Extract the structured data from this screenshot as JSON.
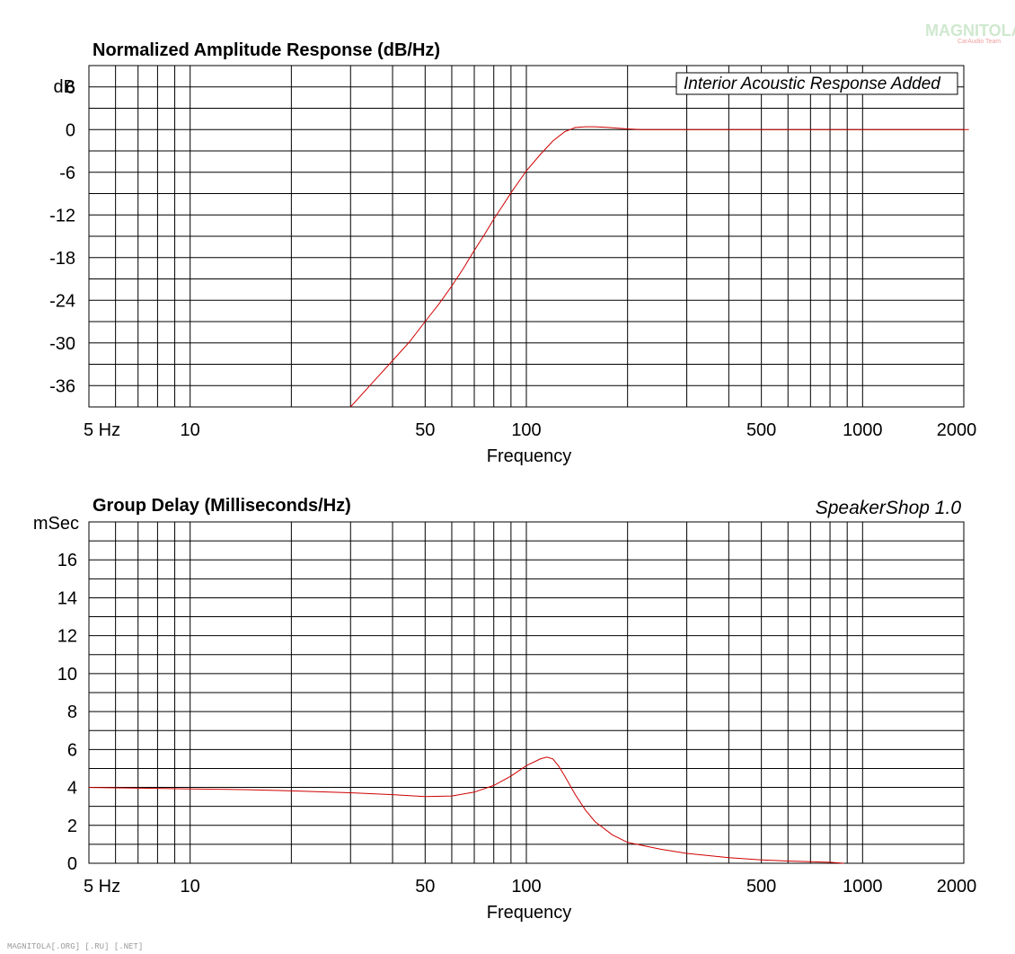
{
  "watermark": {
    "logo": "MAGNITOLA",
    "logo_sub": "CarAudio Team",
    "footer": "MAGNITOLA[.ORG] [.RU] [.NET]"
  },
  "colors": {
    "curve": "#d00000",
    "grid": "#000000"
  },
  "chart_data": [
    {
      "type": "line",
      "title": "Normalized Amplitude Response (dB/Hz)",
      "xlabel": "Frequency",
      "ylabel": "dB",
      "x_scale": "log",
      "xlim": [
        5,
        2000
      ],
      "ylim": [
        -39,
        9
      ],
      "x_tick_labels": [
        {
          "value": 5,
          "label": "5  Hz"
        },
        {
          "value": 10,
          "label": "10"
        },
        {
          "value": 50,
          "label": "50"
        },
        {
          "value": 100,
          "label": "100"
        },
        {
          "value": 500,
          "label": "500"
        },
        {
          "value": 1000,
          "label": "1000"
        },
        {
          "value": 2000,
          "label": "2000"
        }
      ],
      "y_ticks": [
        6,
        0,
        -6,
        -12,
        -18,
        -24,
        -30,
        -36
      ],
      "annotation": "Interior Acoustic Response Added",
      "grid": true,
      "series": [
        {
          "x": [
            30,
            35,
            40,
            45,
            50,
            55,
            60,
            65,
            70,
            75,
            80,
            85,
            90,
            95,
            100,
            110,
            120,
            130,
            140,
            150,
            160,
            175,
            200,
            220,
            300,
            500,
            1000,
            2000,
            2070
          ],
          "y": [
            -39.3,
            -35.5,
            -32.5,
            -29.8,
            -27.0,
            -24.5,
            -22.0,
            -19.5,
            -17.0,
            -14.8,
            -12.6,
            -10.7,
            -8.9,
            -7.3,
            -5.8,
            -3.5,
            -1.6,
            -0.3,
            0.3,
            0.4,
            0.4,
            0.3,
            0.1,
            0.0,
            0.0,
            0.0,
            0.0,
            0.0,
            0.0
          ]
        }
      ]
    },
    {
      "type": "line",
      "title": "Group Delay (Milliseconds/Hz)",
      "xlabel": "Frequency",
      "ylabel": "mSec",
      "x_scale": "log",
      "xlim": [
        5,
        2000
      ],
      "ylim": [
        0,
        18
      ],
      "x_tick_labels": [
        {
          "value": 5,
          "label": "5  Hz"
        },
        {
          "value": 10,
          "label": "10"
        },
        {
          "value": 50,
          "label": "50"
        },
        {
          "value": 100,
          "label": "100"
        },
        {
          "value": 500,
          "label": "500"
        },
        {
          "value": 1000,
          "label": "1000"
        },
        {
          "value": 2000,
          "label": "2000"
        }
      ],
      "y_ticks": [
        16,
        14,
        12,
        10,
        8,
        6,
        4,
        2,
        0
      ],
      "annotation": "SpeakerShop 1.0",
      "grid": true,
      "series": [
        {
          "x": [
            5,
            8,
            10,
            15,
            20,
            30,
            40,
            50,
            60,
            70,
            80,
            90,
            100,
            110,
            115,
            120,
            125,
            130,
            140,
            150,
            160,
            180,
            200,
            250,
            300,
            400,
            500,
            600,
            700,
            800,
            880
          ],
          "y": [
            4.0,
            3.95,
            3.92,
            3.88,
            3.82,
            3.72,
            3.62,
            3.52,
            3.55,
            3.75,
            4.1,
            4.6,
            5.15,
            5.5,
            5.6,
            5.5,
            5.1,
            4.6,
            3.6,
            2.8,
            2.2,
            1.5,
            1.1,
            0.75,
            0.52,
            0.3,
            0.18,
            0.12,
            0.08,
            0.05,
            0.0
          ]
        }
      ]
    }
  ]
}
